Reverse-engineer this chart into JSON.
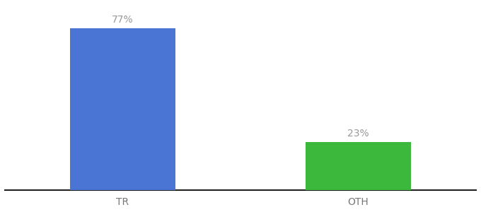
{
  "categories": [
    "TR",
    "OTH"
  ],
  "values": [
    77,
    23
  ],
  "bar_colors": [
    "#4a75d4",
    "#3cb83c"
  ],
  "label_texts": [
    "77%",
    "23%"
  ],
  "label_color": "#999999",
  "label_fontsize": 10,
  "tick_fontsize": 10,
  "tick_color": "#777777",
  "background_color": "#ffffff",
  "bar_width": 0.18,
  "ylim": [
    0,
    88
  ],
  "spine_color": "#222222",
  "x_positions": [
    0.3,
    0.7
  ]
}
